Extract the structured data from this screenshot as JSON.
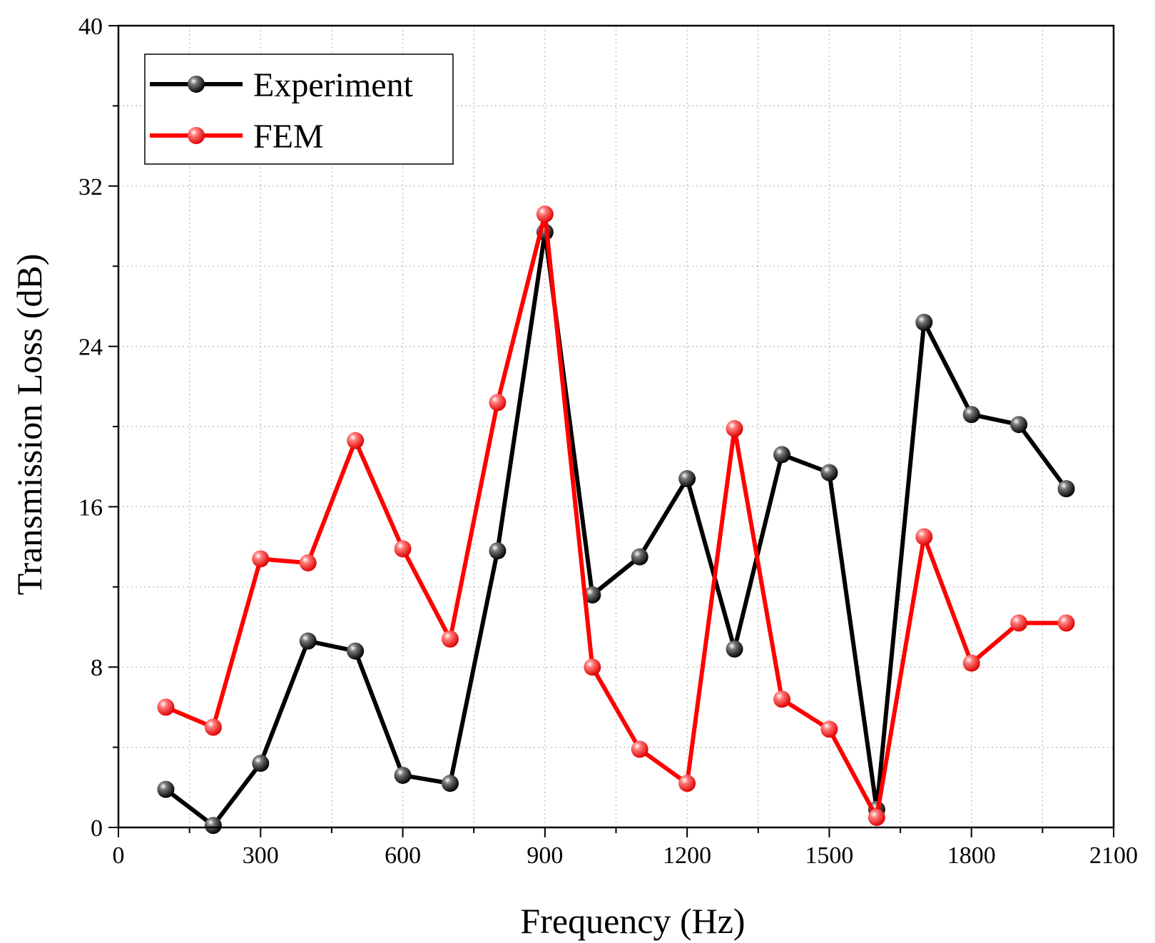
{
  "chart_data": {
    "type": "line",
    "title": "",
    "xlabel": "Frequency (Hz)",
    "ylabel": "Transmission Loss (dB)",
    "xlim": [
      0,
      2100
    ],
    "ylim": [
      0,
      40
    ],
    "xticks": [
      0,
      300,
      600,
      900,
      1200,
      1500,
      1800,
      2100
    ],
    "yticks": [
      0,
      8,
      16,
      24,
      32,
      40
    ],
    "x_minor_step": 150,
    "y_minor_step": 4,
    "grid": true,
    "legend_position": "top-left",
    "x": [
      100,
      200,
      300,
      400,
      500,
      600,
      700,
      800,
      900,
      1000,
      1100,
      1200,
      1300,
      1400,
      1500,
      1600,
      1700,
      1800,
      1900,
      2000
    ],
    "series": [
      {
        "name": "Experiment",
        "color": "#000000",
        "values": [
          1.9,
          0.1,
          3.2,
          9.3,
          8.8,
          2.6,
          2.2,
          13.8,
          29.7,
          11.6,
          13.5,
          17.4,
          8.9,
          18.6,
          17.7,
          0.9,
          25.2,
          20.6,
          20.1,
          16.9
        ]
      },
      {
        "name": "FEM",
        "color": "#ff0000",
        "values": [
          6.0,
          5.0,
          13.4,
          13.2,
          19.3,
          13.9,
          9.4,
          21.2,
          30.6,
          8.0,
          3.9,
          2.2,
          19.9,
          6.4,
          4.9,
          0.5,
          14.5,
          8.2,
          10.2,
          10.2
        ]
      }
    ]
  }
}
